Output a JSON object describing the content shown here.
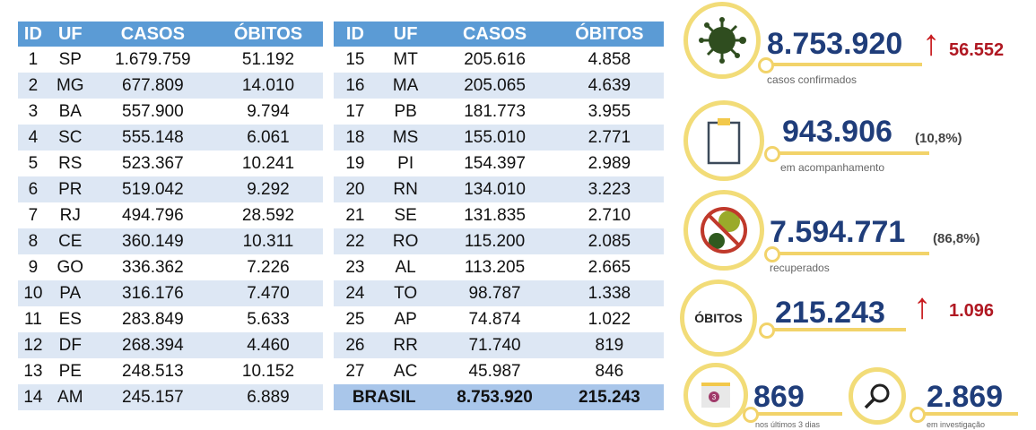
{
  "headers": [
    "ID",
    "UF",
    "CASOS",
    "ÓBITOS"
  ],
  "left_rows": [
    [
      "1",
      "SP",
      "1.679.759",
      "51.192"
    ],
    [
      "2",
      "MG",
      "677.809",
      "14.010"
    ],
    [
      "3",
      "BA",
      "557.900",
      "9.794"
    ],
    [
      "4",
      "SC",
      "555.148",
      "6.061"
    ],
    [
      "5",
      "RS",
      "523.367",
      "10.241"
    ],
    [
      "6",
      "PR",
      "519.042",
      "9.292"
    ],
    [
      "7",
      "RJ",
      "494.796",
      "28.592"
    ],
    [
      "8",
      "CE",
      "360.149",
      "10.311"
    ],
    [
      "9",
      "GO",
      "336.362",
      "7.226"
    ],
    [
      "10",
      "PA",
      "316.176",
      "7.470"
    ],
    [
      "11",
      "ES",
      "283.849",
      "5.633"
    ],
    [
      "12",
      "DF",
      "268.394",
      "4.460"
    ],
    [
      "13",
      "PE",
      "248.513",
      "10.152"
    ],
    [
      "14",
      "AM",
      "245.157",
      "6.889"
    ]
  ],
  "right_rows": [
    [
      "15",
      "MT",
      "205.616",
      "4.858"
    ],
    [
      "16",
      "MA",
      "205.065",
      "4.639"
    ],
    [
      "17",
      "PB",
      "181.773",
      "3.955"
    ],
    [
      "18",
      "MS",
      "155.010",
      "2.771"
    ],
    [
      "19",
      "PI",
      "154.397",
      "2.989"
    ],
    [
      "20",
      "RN",
      "134.010",
      "3.223"
    ],
    [
      "21",
      "SE",
      "131.835",
      "2.710"
    ],
    [
      "22",
      "RO",
      "115.200",
      "2.085"
    ],
    [
      "23",
      "AL",
      "113.205",
      "2.665"
    ],
    [
      "24",
      "TO",
      "98.787",
      "1.338"
    ],
    [
      "25",
      "AP",
      "74.874",
      "1.022"
    ],
    [
      "26",
      "RR",
      "71.740",
      "819"
    ],
    [
      "27",
      "AC",
      "45.987",
      "846"
    ]
  ],
  "total": {
    "label": "BRASIL",
    "casos": "8.753.920",
    "obitos": "215.243"
  },
  "stats": {
    "confirmados": {
      "value": "8.753.920",
      "increase": "56.552",
      "caption": "casos confirmados"
    },
    "acompanhamento": {
      "value": "943.906",
      "pct": "(10,8%)",
      "caption": "em acompanhamento"
    },
    "recuperados": {
      "value": "7.594.771",
      "pct": "(86,8%)",
      "caption": "recuperados"
    },
    "obitos": {
      "icon_label": "ÓBITOS",
      "value": "215.243",
      "increase": "1.096"
    },
    "ultimos": {
      "value": "869",
      "caption": "nos últimos 3 dias",
      "calendar_number": "3"
    },
    "investigacao": {
      "value": "2.869",
      "caption": "em investigação"
    }
  },
  "colors": {
    "header": "#5b9bd5",
    "row_alt": "#dde7f4",
    "number": "#1f3d7a",
    "increase": "#b01822",
    "ring": "#f2dc78"
  }
}
